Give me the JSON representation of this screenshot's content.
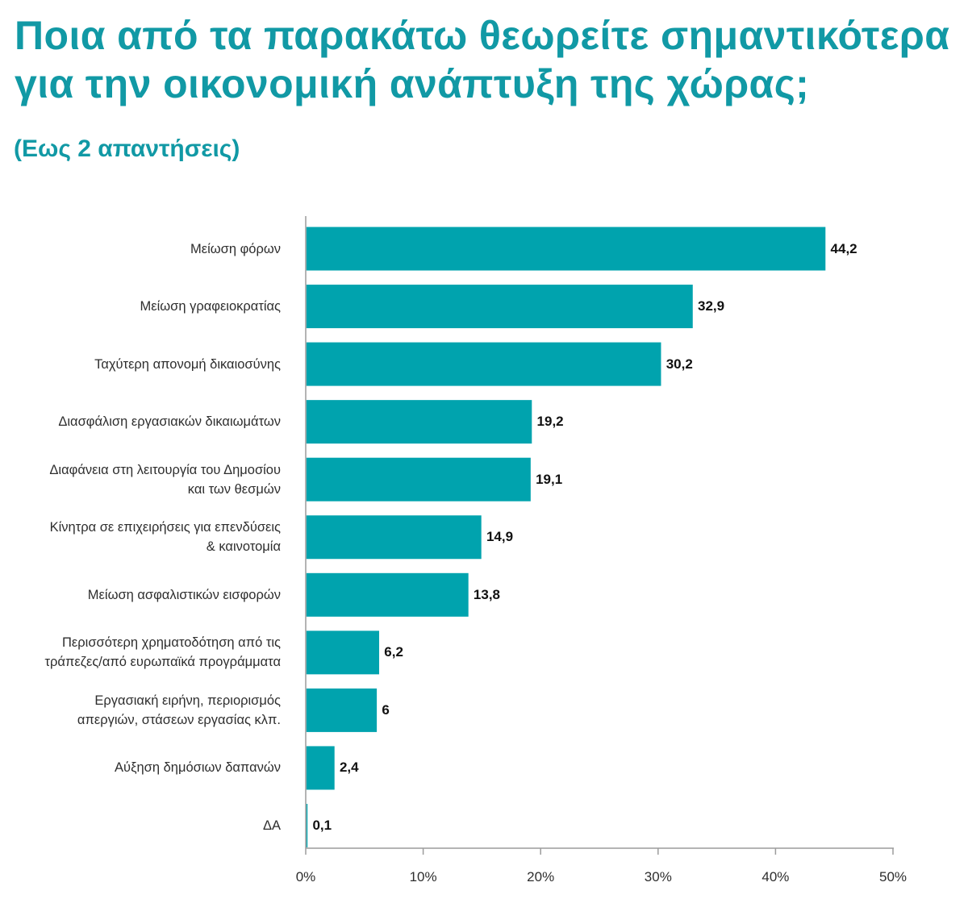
{
  "chart_data": {
    "type": "bar",
    "orientation": "horizontal",
    "title": "Ποια από τα παρακάτω θεωρείτε σημαντικότερα\nγια την οικονομική ανάπτυξη της χώρας;",
    "subtitle": "(Εως 2 απαντήσεις)",
    "categories": [
      "Μείωση φόρων",
      "Μείωση γραφειοκρατίας",
      "Ταχύτερη απονομή δικαιοσύνης",
      "Διασφάλιση εργασιακών δικαιωμάτων",
      "Διαφάνεια στη λειτουργία του Δημοσίου\nκαι των θεσμών",
      "Κίνητρα σε επιχειρήσεις για επενδύσεις\n& καινοτομία",
      "Μείωση ασφαλιστικών εισφορών",
      "Περισσότερη χρηματοδότηση από τις\nτράπεζες/από ευρωπαϊκά προγράμματα",
      "Εργασιακή ειρήνη, περιορισμός\nαπεργιών, στάσεων εργασίας κλπ.",
      "Αύξηση δημόσιων δαπανών",
      "ΔΑ"
    ],
    "values": [
      44.2,
      32.9,
      30.2,
      19.2,
      19.1,
      14.9,
      13.8,
      6.2,
      6,
      2.4,
      0.1
    ],
    "value_labels": [
      "44,2",
      "32,9",
      "30,2",
      "19,2",
      "19,1",
      "14,9",
      "13,8",
      "6,2",
      "6",
      "2,4",
      "0,1"
    ],
    "xlim": [
      0,
      50
    ],
    "xticks": [
      0,
      10,
      20,
      30,
      40,
      50
    ],
    "xtick_labels": [
      "0%",
      "10%",
      "20%",
      "30%",
      "40%",
      "50%"
    ],
    "grid": false
  },
  "colors": {
    "title": "#1199a5",
    "bar": "#00a3ae",
    "category_text": "#2e2e2e",
    "value_text": "#111111",
    "axis": "#9c9c9c"
  }
}
